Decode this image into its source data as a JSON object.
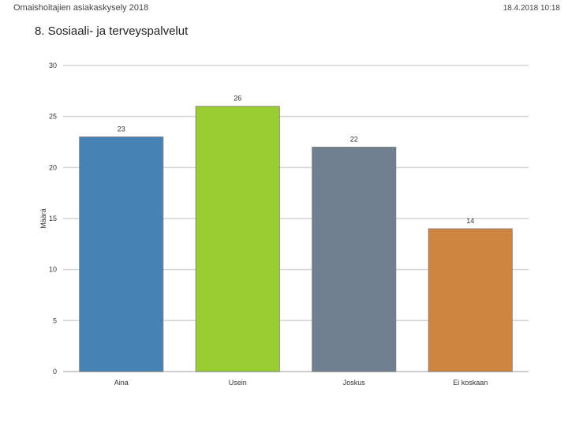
{
  "header": {
    "survey_title": "Omaishoitajien asiakaskysely 2018",
    "datetime": "18.4.2018 10:18"
  },
  "page_title": "8. Sosiaali- ja terveyspalvelut",
  "chart_data": {
    "type": "bar",
    "title": "8. Sosiaali- ja terveyspalvelut",
    "xlabel": "",
    "ylabel": "Määrä",
    "categories": [
      "Aina",
      "Usein",
      "Joskus",
      "Ei koskaan"
    ],
    "values": [
      23,
      26,
      22,
      14
    ],
    "colors": [
      "#4682b4",
      "#9acd32",
      "#708090",
      "#cd853f"
    ],
    "ylim": [
      0,
      30
    ],
    "yticks": [
      0,
      5,
      10,
      15,
      20,
      25,
      30
    ],
    "grid": true,
    "data_labels": true
  }
}
